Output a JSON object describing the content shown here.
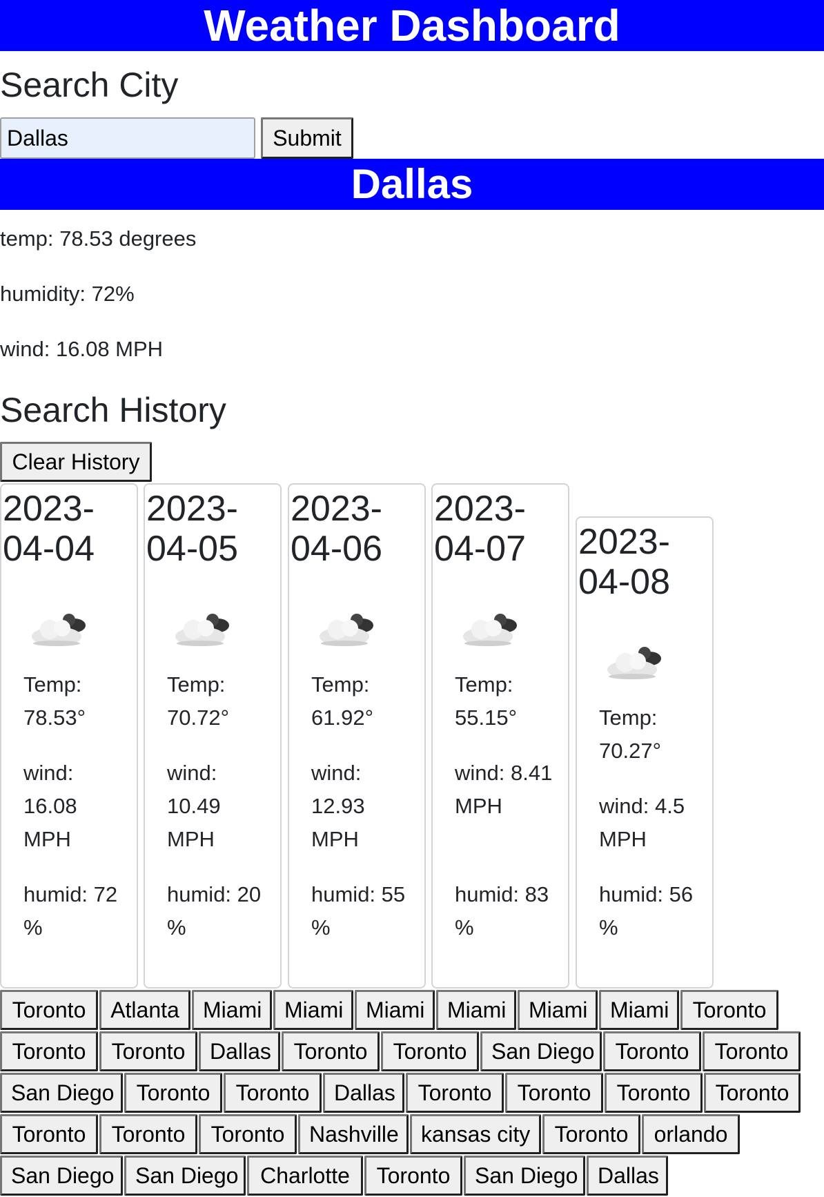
{
  "header": {
    "title": "Weather Dashboard"
  },
  "search": {
    "heading": "Search City",
    "input_value": "Dallas",
    "submit_label": "Submit"
  },
  "current": {
    "city": "Dallas",
    "temp": "temp: 78.53 degrees",
    "humidity": "humidity: 72%",
    "wind": "wind: 16.08 MPH"
  },
  "history": {
    "heading": "Search History",
    "clear_label": "Clear History",
    "items": [
      "Toronto",
      "Atlanta",
      "Miami",
      "Miami",
      "Miami",
      "Miami",
      "Miami",
      "Miami",
      "Toronto",
      "Toronto",
      "Toronto",
      "Dallas",
      "Toronto",
      "Toronto",
      "San Diego",
      "Toronto",
      "Toronto",
      "San Diego",
      "Toronto",
      "Toronto",
      "Dallas",
      "Toronto",
      "Toronto",
      "Toronto",
      "Toronto",
      "Toronto",
      "Toronto",
      "Toronto",
      "Nashville",
      "kansas city",
      "Toronto",
      "orlando",
      "San Diego",
      "San Diego",
      "Charlotte",
      "Toronto",
      "San Diego",
      "Dallas"
    ]
  },
  "forecast": [
    {
      "date": "2023-04-04",
      "icon": "partly-cloudy-icon",
      "temp": "Temp: 78.53°",
      "wind": "wind: 16.08 MPH",
      "humid": "humid: 72 %"
    },
    {
      "date": "2023-04-05",
      "icon": "partly-cloudy-icon",
      "temp": "Temp: 70.72°",
      "wind": "wind: 10.49 MPH",
      "humid": "humid: 20 %"
    },
    {
      "date": "2023-04-06",
      "icon": "partly-cloudy-icon",
      "temp": "Temp: 61.92°",
      "wind": "wind: 12.93 MPH",
      "humid": "humid: 55 %"
    },
    {
      "date": "2023-04-07",
      "icon": "partly-cloudy-icon",
      "temp": "Temp: 55.15°",
      "wind": "wind: 8.41 MPH",
      "humid": "humid: 83 %"
    },
    {
      "date": "2023-04-08",
      "icon": "partly-cloudy-icon",
      "temp": "Temp: 70.27°",
      "wind": "wind: 4.5 MPH",
      "humid": "humid: 56 %"
    }
  ],
  "colors": {
    "accent": "#0000ff",
    "button_bg": "#efefef",
    "input_bg": "#e8f0fe"
  }
}
